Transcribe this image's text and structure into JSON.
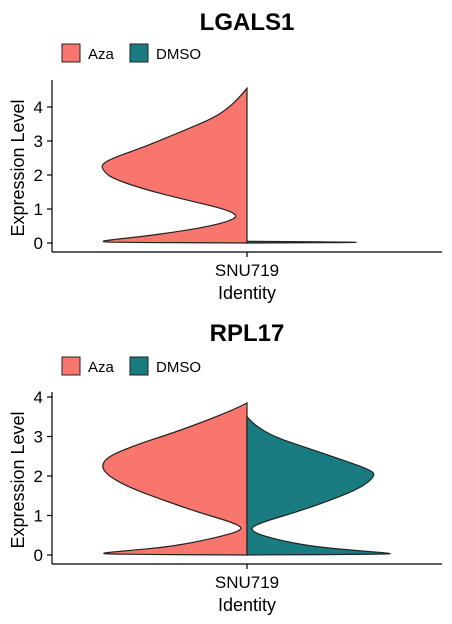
{
  "chart_data": [
    {
      "type": "violin",
      "title": "LGALS1",
      "xlabel": "Identity",
      "ylabel": "Expression Level",
      "categories": [
        "SNU719"
      ],
      "ylim": [
        -0.2,
        4.6
      ],
      "yticks": [
        0,
        1,
        2,
        3,
        4
      ],
      "legend_position": "top-left",
      "series": [
        {
          "name": "Aza",
          "color": "#F8766D",
          "side": "left",
          "density": [
            [
              0.0,
              0.0
            ],
            [
              0.02,
              0.95
            ],
            [
              0.05,
              1.0
            ],
            [
              0.1,
              0.92
            ],
            [
              0.2,
              0.7
            ],
            [
              0.35,
              0.45
            ],
            [
              0.5,
              0.25
            ],
            [
              0.65,
              0.12
            ],
            [
              0.8,
              0.06
            ],
            [
              1.0,
              0.15
            ],
            [
              1.3,
              0.45
            ],
            [
              1.6,
              0.72
            ],
            [
              1.9,
              0.92
            ],
            [
              2.1,
              0.98
            ],
            [
              2.3,
              1.0
            ],
            [
              2.5,
              0.92
            ],
            [
              2.8,
              0.72
            ],
            [
              3.1,
              0.55
            ],
            [
              3.4,
              0.38
            ],
            [
              3.7,
              0.22
            ],
            [
              4.0,
              0.12
            ],
            [
              4.3,
              0.05
            ],
            [
              4.55,
              0.0
            ]
          ]
        },
        {
          "name": "DMSO",
          "color": "#197C80",
          "side": "right",
          "density": [
            [
              0.0,
              0.0
            ],
            [
              0.02,
              1.0
            ],
            [
              0.05,
              0.0
            ]
          ]
        }
      ]
    },
    {
      "type": "violin",
      "title": "RPL17",
      "xlabel": "Identity",
      "ylabel": "Expression Level",
      "categories": [
        "SNU719"
      ],
      "ylim": [
        -0.1,
        4.0
      ],
      "yticks": [
        0,
        1,
        2,
        3,
        4
      ],
      "legend_position": "top-left",
      "series": [
        {
          "name": "Aza",
          "color": "#F8766D",
          "side": "left",
          "density": [
            [
              0.0,
              0.0
            ],
            [
              0.02,
              0.95
            ],
            [
              0.05,
              1.0
            ],
            [
              0.1,
              0.85
            ],
            [
              0.2,
              0.55
            ],
            [
              0.35,
              0.32
            ],
            [
              0.5,
              0.15
            ],
            [
              0.6,
              0.06
            ],
            [
              0.7,
              0.03
            ],
            [
              0.85,
              0.12
            ],
            [
              1.1,
              0.35
            ],
            [
              1.4,
              0.58
            ],
            [
              1.7,
              0.8
            ],
            [
              2.0,
              0.95
            ],
            [
              2.25,
              1.0
            ],
            [
              2.5,
              0.95
            ],
            [
              2.8,
              0.75
            ],
            [
              3.1,
              0.5
            ],
            [
              3.4,
              0.28
            ],
            [
              3.7,
              0.08
            ],
            [
              3.85,
              0.0
            ]
          ]
        },
        {
          "name": "DMSO",
          "color": "#197C80",
          "side": "right",
          "density": [
            [
              0.0,
              0.0
            ],
            [
              0.02,
              1.0
            ],
            [
              0.05,
              0.96
            ],
            [
              0.1,
              0.8
            ],
            [
              0.2,
              0.48
            ],
            [
              0.35,
              0.25
            ],
            [
              0.5,
              0.1
            ],
            [
              0.6,
              0.04
            ],
            [
              0.7,
              0.03
            ],
            [
              0.85,
              0.12
            ],
            [
              1.1,
              0.35
            ],
            [
              1.4,
              0.58
            ],
            [
              1.7,
              0.78
            ],
            [
              2.0,
              0.88
            ],
            [
              2.15,
              0.85
            ],
            [
              2.4,
              0.66
            ],
            [
              2.7,
              0.42
            ],
            [
              3.0,
              0.18
            ],
            [
              3.3,
              0.05
            ],
            [
              3.5,
              0.0
            ]
          ]
        }
      ]
    }
  ]
}
